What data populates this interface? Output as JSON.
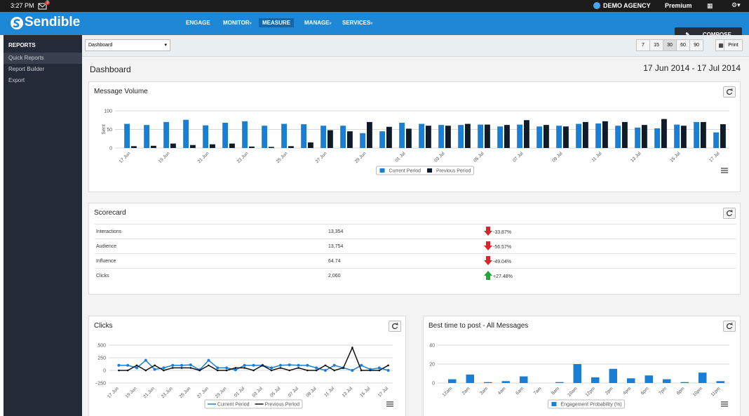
{
  "ui": {
    "time": "3:27 PM",
    "mail_count": "3",
    "account": "DEMO AGENCY",
    "plan": "Premium",
    "logo": "Sendible",
    "nav": [
      "ENGAGE",
      "MONITOR",
      "MEASURE",
      "MANAGE",
      "SERVICES"
    ],
    "compose": "COMPOSE",
    "sidebar_title": "REPORTS",
    "sidebar_items": [
      "Quick Reports",
      "Report Builder",
      "Export"
    ],
    "dropdown": "Dashboard",
    "range_buttons": [
      "7",
      "15",
      "30",
      "60",
      "90"
    ],
    "print": "Print",
    "page_title": "Dashboard",
    "date_range": "17 Jun 2014 - 17 Jul 2014"
  },
  "scorecard": {
    "title": "Scorecard",
    "rows": [
      {
        "label": "Interactions",
        "value": "13,354",
        "change": "-33.87%",
        "trend": "down"
      },
      {
        "label": "Audience",
        "value": "13,754",
        "change": "-56.57%",
        "trend": "down"
      },
      {
        "label": "Influence",
        "value": "64.74",
        "change": "-49.04%",
        "trend": "down"
      },
      {
        "label": "Clicks",
        "value": "2,060",
        "change": "+27.48%",
        "trend": "up"
      }
    ]
  },
  "chart_data": [
    {
      "type": "bar",
      "title": "Message Volume",
      "y_label": "Sent",
      "categories": [
        "17 Jun",
        null,
        "19 Jun",
        null,
        "21 Jun",
        null,
        "23 Jun",
        null,
        "25 Jun",
        null,
        "27 Jun",
        null,
        "29 Jun",
        null,
        "01 Jul",
        null,
        "03 Jul",
        null,
        "05 Jul",
        null,
        "07 Jul",
        null,
        "09 Jul",
        null,
        "11 Jul",
        null,
        "13 Jul",
        null,
        "15 Jul",
        null,
        "17 Jul"
      ],
      "series": [
        {
          "name": "Current Period",
          "color": "#1a7fd4",
          "values": [
            65,
            62,
            70,
            76,
            61,
            68,
            72,
            60,
            65,
            64,
            60,
            60,
            40,
            45,
            68,
            65,
            62,
            62,
            63,
            58,
            63,
            58,
            60,
            65,
            66,
            60,
            55,
            53,
            63,
            70,
            42
          ]
        },
        {
          "name": "Previous Period",
          "color": "#0f1a2b",
          "values": [
            5,
            6,
            12,
            8,
            10,
            12,
            4,
            3,
            5,
            15,
            48,
            45,
            70,
            57,
            52,
            60,
            60,
            65,
            63,
            62,
            75,
            62,
            58,
            70,
            72,
            70,
            62,
            78,
            60,
            70,
            64
          ]
        }
      ],
      "ylim": [
        0,
        100
      ],
      "yticks": [
        0,
        50,
        100
      ],
      "grid": true
    },
    {
      "type": "line",
      "title": "Clicks",
      "categories": [
        "17 Jun",
        null,
        "19 Jun",
        null,
        "21 Jun",
        null,
        "23 Jun",
        null,
        "25 Jun",
        null,
        "27 Jun",
        null,
        "29 Jun",
        null,
        "01 Jul",
        null,
        "03 Jul",
        null,
        "05 Jul",
        null,
        "07 Jul",
        null,
        "09 Jul",
        null,
        "11 Jul",
        null,
        "13 Jul",
        null,
        "15 Jul",
        null,
        "17 Jul"
      ],
      "series": [
        {
          "name": "Current Period",
          "color": "#1a7fd4",
          "values": [
            100,
            100,
            50,
            200,
            20,
            50,
            100,
            100,
            110,
            10,
            200,
            50,
            50,
            10,
            100,
            100,
            100,
            50,
            100,
            110,
            100,
            100,
            50,
            0,
            100,
            50,
            0,
            100,
            20,
            50,
            0
          ]
        },
        {
          "name": "Previous Period",
          "color": "#111111",
          "values": [
            0,
            0,
            100,
            0,
            100,
            0,
            50,
            50,
            50,
            0,
            100,
            0,
            0,
            50,
            50,
            0,
            100,
            0,
            50,
            0,
            50,
            0,
            0,
            100,
            0,
            50,
            450,
            0,
            0,
            0,
            100
          ]
        }
      ],
      "ylim": [
        -250,
        500
      ],
      "yticks": [
        {
          "value": -250,
          "label": "−250"
        },
        0,
        250,
        500
      ],
      "grid": true
    },
    {
      "type": "bar",
      "title": "Best time to post - All Messages",
      "categories": [
        "12am",
        "2am",
        "3am",
        "4am",
        "6am",
        "7am",
        "8am",
        "10am",
        "12pm",
        "2pm",
        "4pm",
        "6pm",
        "7pm",
        "8pm",
        "10pm",
        "11pm"
      ],
      "series": [
        {
          "name": "Engagement Probability (%)",
          "color": "#1a7fd4",
          "values": [
            4,
            9,
            1,
            2,
            7,
            0,
            1,
            20,
            6,
            15,
            5,
            8,
            4,
            1,
            11,
            2
          ]
        }
      ],
      "ylim": [
        0,
        40
      ],
      "yticks": [
        0,
        20,
        40
      ],
      "grid": true
    }
  ]
}
